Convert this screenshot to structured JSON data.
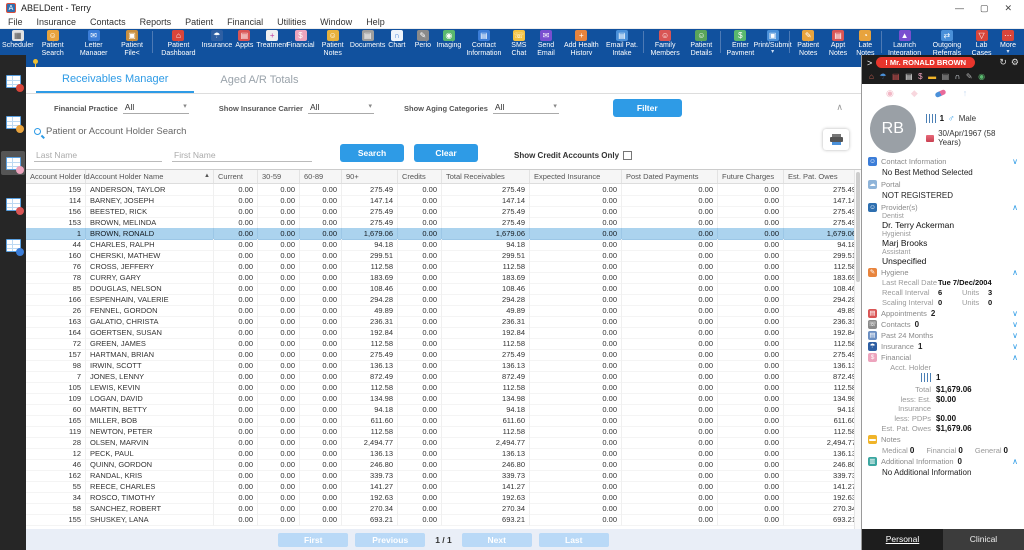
{
  "colors": {
    "accent_blue": "#2e9be6",
    "toolbar_blue": "#11519e",
    "selected_row_blue": "#abd3ee",
    "alert_red": "#e8352c"
  },
  "window": {
    "title": "ABELDent - Terry",
    "controls": [
      "—",
      "▢",
      "✕"
    ]
  },
  "menu_bar": [
    "File",
    "Insurance",
    "Contacts",
    "Reports",
    "Patient",
    "Financial",
    "Utilities",
    "Window",
    "Help"
  ],
  "toolbar": {
    "left": [
      {
        "label": "Scheduler",
        "icon": "scheduler-icon",
        "glyph": "▦",
        "bg": "#e3e3e3",
        "fg": "#555"
      },
      {
        "label": "Patient Search",
        "icon": "patient-search-icon",
        "glyph": "☺",
        "bg": "#e8a33d",
        "fg": "#fff"
      },
      {
        "label": "Letter Manager",
        "icon": "letter-manager-icon",
        "glyph": "✉",
        "bg": "#3b7dd8",
        "fg": "#fff"
      },
      {
        "label": "Patient File<",
        "icon": "patient-file-icon",
        "glyph": "▣",
        "bg": "#c98f3f",
        "fg": "#fff"
      },
      {
        "label": "Patient Dashboard",
        "icon": "patient-dashboard-icon",
        "glyph": "⌂",
        "bg": "#d9453a",
        "fg": "#fff",
        "divider_before": true
      },
      {
        "label": "Insurance",
        "icon": "insurance-icon",
        "glyph": "☂",
        "bg": "#2e5fa3",
        "fg": "#fff"
      },
      {
        "label": "Appts",
        "icon": "appts-icon",
        "glyph": "▤",
        "bg": "#d95555",
        "fg": "#fff"
      },
      {
        "label": "Treatment",
        "icon": "treatment-icon",
        "glyph": "+",
        "bg": "#f0f0f0",
        "fg": "#c13fa0"
      },
      {
        "label": "Financial",
        "icon": "financial-piggy-icon",
        "glyph": "$",
        "bg": "#eda4bd",
        "fg": "#fff"
      },
      {
        "label": "Patient Notes",
        "icon": "patient-notes-icon",
        "glyph": "☺",
        "bg": "#e8b23d",
        "fg": "#fff"
      },
      {
        "label": "Documents",
        "icon": "documents-icon",
        "glyph": "▤",
        "bg": "#9e9e9e",
        "fg": "#fff"
      },
      {
        "label": "Chart",
        "icon": "tooth-chart-icon",
        "glyph": "∩",
        "bg": "#eef5fc",
        "fg": "#3b7dd8"
      },
      {
        "label": "Perio",
        "icon": "perio-probe-icon",
        "glyph": "✎",
        "bg": "#8a8a8a",
        "fg": "#fff"
      },
      {
        "label": "Imaging",
        "icon": "imaging-camera-icon",
        "glyph": "◉",
        "bg": "#59b86e",
        "fg": "#fff"
      }
    ],
    "right": [
      {
        "label": "Contact Information",
        "icon": "contact-information-icon",
        "glyph": "▤",
        "bg": "#3b7dd8",
        "fg": "#fff"
      },
      {
        "label": "SMS Chat",
        "icon": "sms-chat-icon",
        "glyph": "☏",
        "bg": "#f5c242",
        "fg": "#fff"
      },
      {
        "label": "Send Email",
        "icon": "send-email-icon",
        "glyph": "✉",
        "bg": "#7a4fd0",
        "fg": "#fff"
      },
      {
        "label": "Add Health History",
        "icon": "add-health-history-icon",
        "glyph": "+",
        "bg": "#e8843d",
        "fg": "#fff"
      },
      {
        "label": "Email Pat. Intake",
        "icon": "email-patient-intake-icon",
        "glyph": "▤",
        "bg": "#4a90d9",
        "fg": "#fff"
      },
      {
        "label": "Family Members",
        "icon": "family-members-icon",
        "glyph": "☺",
        "bg": "#d95555",
        "fg": "#fff",
        "divider_before": true,
        "caret": true
      },
      {
        "label": "Patient Details",
        "icon": "patient-details-icon",
        "glyph": "☺",
        "bg": "#5aa55a",
        "fg": "#fff",
        "caret": true
      },
      {
        "label": "Enter Payment",
        "icon": "enter-payment-icon",
        "glyph": "$",
        "bg": "#59b86e",
        "fg": "#fff",
        "divider_before": true
      },
      {
        "label": "Print/Submit",
        "icon": "print-submit-icon",
        "glyph": "▣",
        "bg": "#4a90d9",
        "fg": "#fff",
        "caret": true
      },
      {
        "label": "Patient Notes",
        "icon": "patient-notes-add-icon",
        "glyph": "✎",
        "bg": "#e8a33d",
        "fg": "#fff",
        "divider_before": true
      },
      {
        "label": "Appt Notes",
        "icon": "appt-notes-icon",
        "glyph": "▤",
        "bg": "#d95555",
        "fg": "#fff"
      },
      {
        "label": "Late Notes",
        "icon": "late-notes-icon",
        "glyph": "◔",
        "bg": "#e8a33d",
        "fg": "#fff"
      },
      {
        "label": "Launch Integration",
        "icon": "launch-integration-icon",
        "glyph": "▲",
        "bg": "#7a4fd0",
        "fg": "#fff",
        "divider_before": true
      },
      {
        "label": "Outgoing Referrals",
        "icon": "outgoing-referrals-icon",
        "glyph": "⇄",
        "bg": "#4a90d9",
        "fg": "#fff"
      },
      {
        "label": "Lab Cases",
        "icon": "lab-cases-icon",
        "glyph": "▽",
        "bg": "#d9453a",
        "fg": "#fff"
      },
      {
        "label": "More",
        "icon": "more-icon",
        "glyph": "⋯",
        "bg": "#d9453a",
        "fg": "#fff",
        "caret": true
      }
    ]
  },
  "left_sidebar": [
    {
      "name": "left-nav-item-1",
      "badge": "#d9453a",
      "selected": false
    },
    {
      "name": "left-nav-item-2",
      "badge": "#e8a33d",
      "selected": false
    },
    {
      "name": "left-nav-item-3",
      "badge": "#eda4bd",
      "selected": true
    },
    {
      "name": "left-nav-item-4",
      "badge": "#d95555",
      "selected": false
    },
    {
      "name": "left-nav-item-5",
      "badge": "#3b7dd8",
      "selected": false
    }
  ],
  "content": {
    "tabs": [
      {
        "label": "Receivables Manager",
        "active": true
      },
      {
        "label": "Aged A/R Totals",
        "active": false
      }
    ],
    "filters": [
      {
        "label": "Financial Practice",
        "value": "All"
      },
      {
        "label": "Show Insurance Carrier",
        "value": "All"
      },
      {
        "label": "Show Aging Categories",
        "value": "All"
      }
    ],
    "filter_button_label": "Filter",
    "search": {
      "title": "Patient or Account Holder Search",
      "last_name_placeholder": "Last Name",
      "first_name_placeholder": "First Name",
      "search_label": "Search",
      "clear_label": "Clear",
      "credit_only_label": "Show Credit Accounts Only"
    },
    "table": {
      "columns": [
        "Account Holder Id",
        "Account Holder Name",
        "Current",
        "30-59",
        "60-89",
        "90+",
        "Credits",
        "Total Receivables",
        "Expected Insurance",
        "Post Dated Payments",
        "Future Charges",
        "Est. Pat. Owes"
      ],
      "sorted_column_index": 1,
      "selected_row_index": 4,
      "rows": [
        [
          "159",
          "ANDERSON, TAYLOR",
          "0.00",
          "0.00",
          "0.00",
          "275.49",
          "0.00",
          "275.49",
          "0.00",
          "0.00",
          "0.00",
          "275.49"
        ],
        [
          "114",
          "BARNEY, JOSEPH",
          "0.00",
          "0.00",
          "0.00",
          "147.14",
          "0.00",
          "147.14",
          "0.00",
          "0.00",
          "0.00",
          "147.14"
        ],
        [
          "156",
          "BEESTED, RICK",
          "0.00",
          "0.00",
          "0.00",
          "275.49",
          "0.00",
          "275.49",
          "0.00",
          "0.00",
          "0.00",
          "275.49"
        ],
        [
          "153",
          "BROWN, MELINDA",
          "0.00",
          "0.00",
          "0.00",
          "275.49",
          "0.00",
          "275.49",
          "0.00",
          "0.00",
          "0.00",
          "275.49"
        ],
        [
          "1",
          "BROWN, RONALD",
          "0.00",
          "0.00",
          "0.00",
          "1,679.06",
          "0.00",
          "1,679.06",
          "0.00",
          "0.00",
          "0.00",
          "1,679.06"
        ],
        [
          "44",
          "CHARLES, RALPH",
          "0.00",
          "0.00",
          "0.00",
          "94.18",
          "0.00",
          "94.18",
          "0.00",
          "0.00",
          "0.00",
          "94.18"
        ],
        [
          "160",
          "CHERSKI, MATHEW",
          "0.00",
          "0.00",
          "0.00",
          "299.51",
          "0.00",
          "299.51",
          "0.00",
          "0.00",
          "0.00",
          "299.51"
        ],
        [
          "76",
          "CROSS, JEFFERY",
          "0.00",
          "0.00",
          "0.00",
          "112.58",
          "0.00",
          "112.58",
          "0.00",
          "0.00",
          "0.00",
          "112.58"
        ],
        [
          "78",
          "CURRY, GARY",
          "0.00",
          "0.00",
          "0.00",
          "183.69",
          "0.00",
          "183.69",
          "0.00",
          "0.00",
          "0.00",
          "183.69"
        ],
        [
          "85",
          "DOUGLAS, NELSON",
          "0.00",
          "0.00",
          "0.00",
          "108.46",
          "0.00",
          "108.46",
          "0.00",
          "0.00",
          "0.00",
          "108.46"
        ],
        [
          "166",
          "ESPENHAIN, VALERIE",
          "0.00",
          "0.00",
          "0.00",
          "294.28",
          "0.00",
          "294.28",
          "0.00",
          "0.00",
          "0.00",
          "294.28"
        ],
        [
          "26",
          "FENNEL, GORDON",
          "0.00",
          "0.00",
          "0.00",
          "49.89",
          "0.00",
          "49.89",
          "0.00",
          "0.00",
          "0.00",
          "49.89"
        ],
        [
          "163",
          "GALATIO, CHRISTA",
          "0.00",
          "0.00",
          "0.00",
          "236.31",
          "0.00",
          "236.31",
          "0.00",
          "0.00",
          "0.00",
          "236.31"
        ],
        [
          "164",
          "GOERTSEN, SUSAN",
          "0.00",
          "0.00",
          "0.00",
          "192.84",
          "0.00",
          "192.84",
          "0.00",
          "0.00",
          "0.00",
          "192.84"
        ],
        [
          "72",
          "GREEN, JAMES",
          "0.00",
          "0.00",
          "0.00",
          "112.58",
          "0.00",
          "112.58",
          "0.00",
          "0.00",
          "0.00",
          "112.58"
        ],
        [
          "157",
          "HARTMAN, BRIAN",
          "0.00",
          "0.00",
          "0.00",
          "275.49",
          "0.00",
          "275.49",
          "0.00",
          "0.00",
          "0.00",
          "275.49"
        ],
        [
          "98",
          "IRWIN, SCOTT",
          "0.00",
          "0.00",
          "0.00",
          "136.13",
          "0.00",
          "136.13",
          "0.00",
          "0.00",
          "0.00",
          "136.13"
        ],
        [
          "7",
          "JONES, LENNY",
          "0.00",
          "0.00",
          "0.00",
          "872.49",
          "0.00",
          "872.49",
          "0.00",
          "0.00",
          "0.00",
          "872.49"
        ],
        [
          "105",
          "LEWIS, KEVIN",
          "0.00",
          "0.00",
          "0.00",
          "112.58",
          "0.00",
          "112.58",
          "0.00",
          "0.00",
          "0.00",
          "112.58"
        ],
        [
          "109",
          "LOGAN, DAVID",
          "0.00",
          "0.00",
          "0.00",
          "134.98",
          "0.00",
          "134.98",
          "0.00",
          "0.00",
          "0.00",
          "134.98"
        ],
        [
          "60",
          "MARTIN, BETTY",
          "0.00",
          "0.00",
          "0.00",
          "94.18",
          "0.00",
          "94.18",
          "0.00",
          "0.00",
          "0.00",
          "94.18"
        ],
        [
          "165",
          "MILLER, BOB",
          "0.00",
          "0.00",
          "0.00",
          "611.60",
          "0.00",
          "611.60",
          "0.00",
          "0.00",
          "0.00",
          "611.60"
        ],
        [
          "119",
          "NEWTON, PETER",
          "0.00",
          "0.00",
          "0.00",
          "112.58",
          "0.00",
          "112.58",
          "0.00",
          "0.00",
          "0.00",
          "112.58"
        ],
        [
          "28",
          "OLSEN, MARVIN",
          "0.00",
          "0.00",
          "0.00",
          "2,494.77",
          "0.00",
          "2,494.77",
          "0.00",
          "0.00",
          "0.00",
          "2,494.77"
        ],
        [
          "12",
          "PECK, PAUL",
          "0.00",
          "0.00",
          "0.00",
          "136.13",
          "0.00",
          "136.13",
          "0.00",
          "0.00",
          "0.00",
          "136.13"
        ],
        [
          "46",
          "QUINN, GORDON",
          "0.00",
          "0.00",
          "0.00",
          "246.80",
          "0.00",
          "246.80",
          "0.00",
          "0.00",
          "0.00",
          "246.80"
        ],
        [
          "162",
          "RANDAL, KRIS",
          "0.00",
          "0.00",
          "0.00",
          "339.73",
          "0.00",
          "339.73",
          "0.00",
          "0.00",
          "0.00",
          "339.73"
        ],
        [
          "55",
          "REECE, CHARLES",
          "0.00",
          "0.00",
          "0.00",
          "141.27",
          "0.00",
          "141.27",
          "0.00",
          "0.00",
          "0.00",
          "141.27"
        ],
        [
          "34",
          "ROSCO, TIMOTHY",
          "0.00",
          "0.00",
          "0.00",
          "192.63",
          "0.00",
          "192.63",
          "0.00",
          "0.00",
          "0.00",
          "192.63"
        ],
        [
          "58",
          "SANCHEZ, ROBERT",
          "0.00",
          "0.00",
          "0.00",
          "270.34",
          "0.00",
          "270.34",
          "0.00",
          "0.00",
          "0.00",
          "270.34"
        ],
        [
          "155",
          "SHUSKEY, LANA",
          "0.00",
          "0.00",
          "0.00",
          "693.21",
          "0.00",
          "693.21",
          "0.00",
          "0.00",
          "0.00",
          "693.21"
        ]
      ]
    },
    "pagination": {
      "first": "First",
      "previous": "Previous",
      "page_label": "1 / 1",
      "next": "Next",
      "last": "Last"
    }
  },
  "patient_panel": {
    "collapse_arrow": ">",
    "name_pill": "! Mr. RONALD BROWN",
    "avatar_initials": "RB",
    "account_id": "1",
    "gender_label": "Male",
    "birthdate_label": "30/Apr/1967 (58 Years)",
    "quick_icons": [
      {
        "name": "home-icon",
        "glyph": "⌂",
        "color": "#e06a5a"
      },
      {
        "name": "insurance-umbrella-icon",
        "glyph": "☂",
        "color": "#4a90d9"
      },
      {
        "name": "appointments-calendar-icon",
        "glyph": "▤",
        "color": "#d95555"
      },
      {
        "name": "treatment-note-icon",
        "glyph": "▤",
        "color": "#f0f0f0"
      },
      {
        "name": "financial-piggy-icon",
        "glyph": "$",
        "color": "#eda4bd"
      },
      {
        "name": "sticky-note-icon",
        "glyph": "▬",
        "color": "#f0b429"
      },
      {
        "name": "documents-icon",
        "glyph": "▤",
        "color": "#b0b0b0"
      },
      {
        "name": "tooth-chart-icon",
        "glyph": "∩",
        "color": "#eef5fc"
      },
      {
        "name": "perio-probe-icon",
        "glyph": "✎",
        "color": "#b0b0b0"
      },
      {
        "name": "imaging-camera-icon",
        "glyph": "◉",
        "color": "#59b86e"
      }
    ],
    "pale_icons": [
      {
        "name": "camera-icon",
        "glyph": "◉",
        "color": "#f2b8c6"
      },
      {
        "name": "diamond-icon",
        "glyph": "◆",
        "color": "#f8d7de"
      },
      {
        "name": "medication-pill-icon",
        "glyph": "",
        "color": "",
        "shape": "pill"
      },
      {
        "name": "implant-icon",
        "glyph": "↑",
        "color": "#c5d8f0"
      }
    ],
    "sections": {
      "contact": {
        "title": "Contact Information",
        "value": "No Best Method Selected"
      },
      "portal": {
        "title": "Portal",
        "value": "NOT REGISTERED"
      },
      "providers": {
        "title": "Provider(s)",
        "dentist_label": "Dentist",
        "dentist": "Dr. Terry Ackerman",
        "hygienist_label": "Hygienist",
        "hygienist": "Marj Brooks",
        "assistant_label": "Assistant",
        "assistant": "Unspecified"
      },
      "hygiene": {
        "title": "Hygiene",
        "last_recall_label": "Last Recall Date",
        "last_recall": "Tue 7/Dec/2004",
        "recall_interval_label": "Recall Interval",
        "recall_interval": "6",
        "recall_units_label": "Units",
        "recall_units": "3",
        "scaling_interval_label": "Scaling Interval",
        "scaling_interval": "0",
        "scaling_units_label": "Units",
        "scaling_units": "0"
      },
      "appointments": {
        "title": "Appointments",
        "count": "2"
      },
      "contacts": {
        "title": "Contacts",
        "count": "0"
      },
      "past24": {
        "title": "Past 24 Months"
      },
      "insurance": {
        "title": "Insurance",
        "count": "1"
      },
      "financial": {
        "title": "Financial",
        "acct_holder_label": "Acct. Holder",
        "acct_id": "1",
        "total_label": "Total",
        "total": "$1,679.06",
        "less_ins_label": "less: Est. Insurance",
        "less_ins": "$0.00",
        "less_pdps_label": "less: PDPs",
        "less_pdps": "$0.00",
        "est_owes_label": "Est. Pat. Owes",
        "est_owes": "$1,679.06"
      },
      "notes": {
        "title": "Notes",
        "medical_label": "Medical",
        "medical": "0",
        "financial_label": "Financial",
        "financial": "0",
        "general_label": "General",
        "general": "0"
      },
      "additional": {
        "title": "Additional Information",
        "count": "0",
        "value": "No Additional Information"
      }
    },
    "tabs": [
      {
        "label": "Personal",
        "active": true
      },
      {
        "label": "Clinical",
        "active": false
      }
    ]
  }
}
